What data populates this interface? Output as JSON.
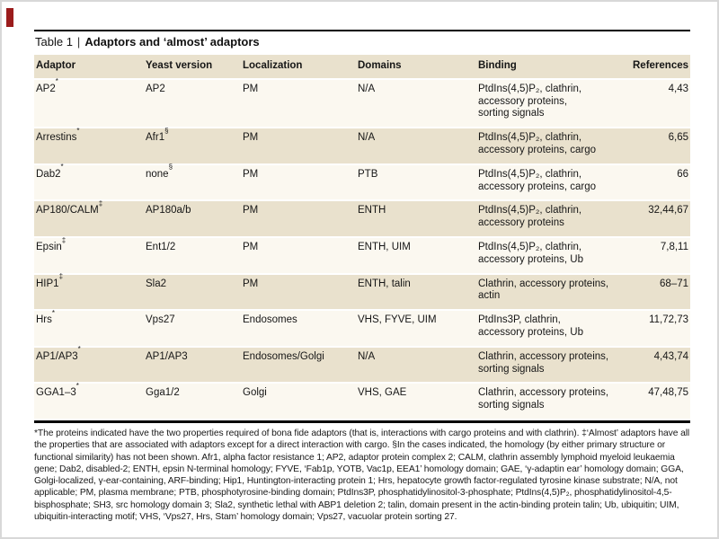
{
  "colors": {
    "shaded_row": "#e9e1cd",
    "light_row": "#fbf8f0",
    "corner_mark": "#9b1c1c",
    "rule": "#000000"
  },
  "table": {
    "label": "Table 1",
    "separator": "|",
    "title": "Adaptors and ‘almost’ adaptors",
    "columns": [
      "Adaptor",
      "Yeast version",
      "Localization",
      "Domains",
      "Binding",
      "References"
    ],
    "rows": [
      {
        "adaptor": "AP2",
        "adaptor_sup": "*",
        "yeast": "AP2",
        "yeast_sup": "",
        "localization": "PM",
        "domains": "N/A",
        "binding": "PtdIns(4,5)P₂, clathrin,\naccessory proteins,\nsorting signals",
        "references": "4,43",
        "shaded": false
      },
      {
        "adaptor": "Arrestins",
        "adaptor_sup": "*",
        "yeast": "Afr1",
        "yeast_sup": "§",
        "localization": "PM",
        "domains": "N/A",
        "binding": "PtdIns(4,5)P₂, clathrin,\naccessory proteins, cargo",
        "references": "6,65",
        "shaded": true
      },
      {
        "adaptor": "Dab2",
        "adaptor_sup": "*",
        "yeast": "none",
        "yeast_sup": "§",
        "localization": "PM",
        "domains": "PTB",
        "binding": "PtdIns(4,5)P₂, clathrin,\naccessory proteins, cargo",
        "references": "66",
        "shaded": false
      },
      {
        "adaptor": "AP180/CALM",
        "adaptor_sup": "‡",
        "yeast": "AP180a/b",
        "yeast_sup": "",
        "localization": "PM",
        "domains": "ENTH",
        "binding": "PtdIns(4,5)P₂, clathrin,\naccessory proteins",
        "references": "32,44,67",
        "shaded": true
      },
      {
        "adaptor": "Epsin",
        "adaptor_sup": "‡",
        "yeast": "Ent1/2",
        "yeast_sup": "",
        "localization": "PM",
        "domains": "ENTH, UIM",
        "binding": "PtdIns(4,5)P₂, clathrin,\naccessory proteins, Ub",
        "references": "7,8,11",
        "shaded": false
      },
      {
        "adaptor": "HIP1",
        "adaptor_sup": "‡",
        "yeast": "Sla2",
        "yeast_sup": "",
        "localization": "PM",
        "domains": "ENTH, talin",
        "binding": "Clathrin, accessory proteins,\nactin",
        "references": "68–71",
        "shaded": true
      },
      {
        "adaptor": "Hrs",
        "adaptor_sup": "*",
        "yeast": "Vps27",
        "yeast_sup": "",
        "localization": "Endosomes",
        "domains": "VHS, FYVE, UIM",
        "binding": "PtdIns3P, clathrin,\naccessory proteins, Ub",
        "references": "11,72,73",
        "shaded": false
      },
      {
        "adaptor": "AP1/AP3",
        "adaptor_sup": "*",
        "yeast": "AP1/AP3",
        "yeast_sup": "",
        "localization": "Endosomes/Golgi",
        "domains": "N/A",
        "binding": "Clathrin, accessory proteins,\nsorting signals",
        "references": "4,43,74",
        "shaded": true
      },
      {
        "adaptor": "GGA1–3",
        "adaptor_sup": "*",
        "yeast": "Gga1/2",
        "yeast_sup": "",
        "localization": "Golgi",
        "domains": "VHS, GAE",
        "binding": "Clathrin, accessory proteins,\nsorting signals",
        "references": "47,48,75",
        "shaded": false
      }
    ],
    "footnote": "*The proteins indicated have the two properties required of bona fide adaptors (that is, interactions with cargo proteins and with clathrin). ‡‘Almost’ adaptors have all the properties that are associated with adaptors except for a direct interaction with cargo. §In the cases indicated, the homology (by either primary structure or functional similarity) has not been shown. Afr1, alpha factor resistance 1; AP2, adaptor protein complex 2; CALM, clathrin assembly lymphoid myeloid leukaemia gene; Dab2, disabled-2; ENTH, epsin N-terminal homology; FYVE, ‘Fab1p, YOTB, Vac1p, EEA1’ homology domain; GAE, ‘γ-adaptin ear’ homology domain; GGA, Golgi-localized, γ-ear-containing, ARF-binding; Hip1, Huntington-interacting protein 1; Hrs, hepatocyte growth factor-regulated tyrosine kinase substrate; N/A, not applicable; PM, plasma membrane; PTB, phosphotyrosine-binding domain; PtdIns3P, phosphatidylinositol-3-phosphate; PtdIns(4,5)P₂, phosphatidylinositol-4,5-bisphosphate; SH3, src homology domain 3; Sla2, synthetic lethal with ABP1 deletion 2; talin, domain present in the actin-binding protein talin; Ub, ubiquitin; UIM, ubiquitin-interacting motif; VHS, ‘Vps27, Hrs, Stam’ homology domain; Vps27, vacuolar protein sorting 27."
  }
}
